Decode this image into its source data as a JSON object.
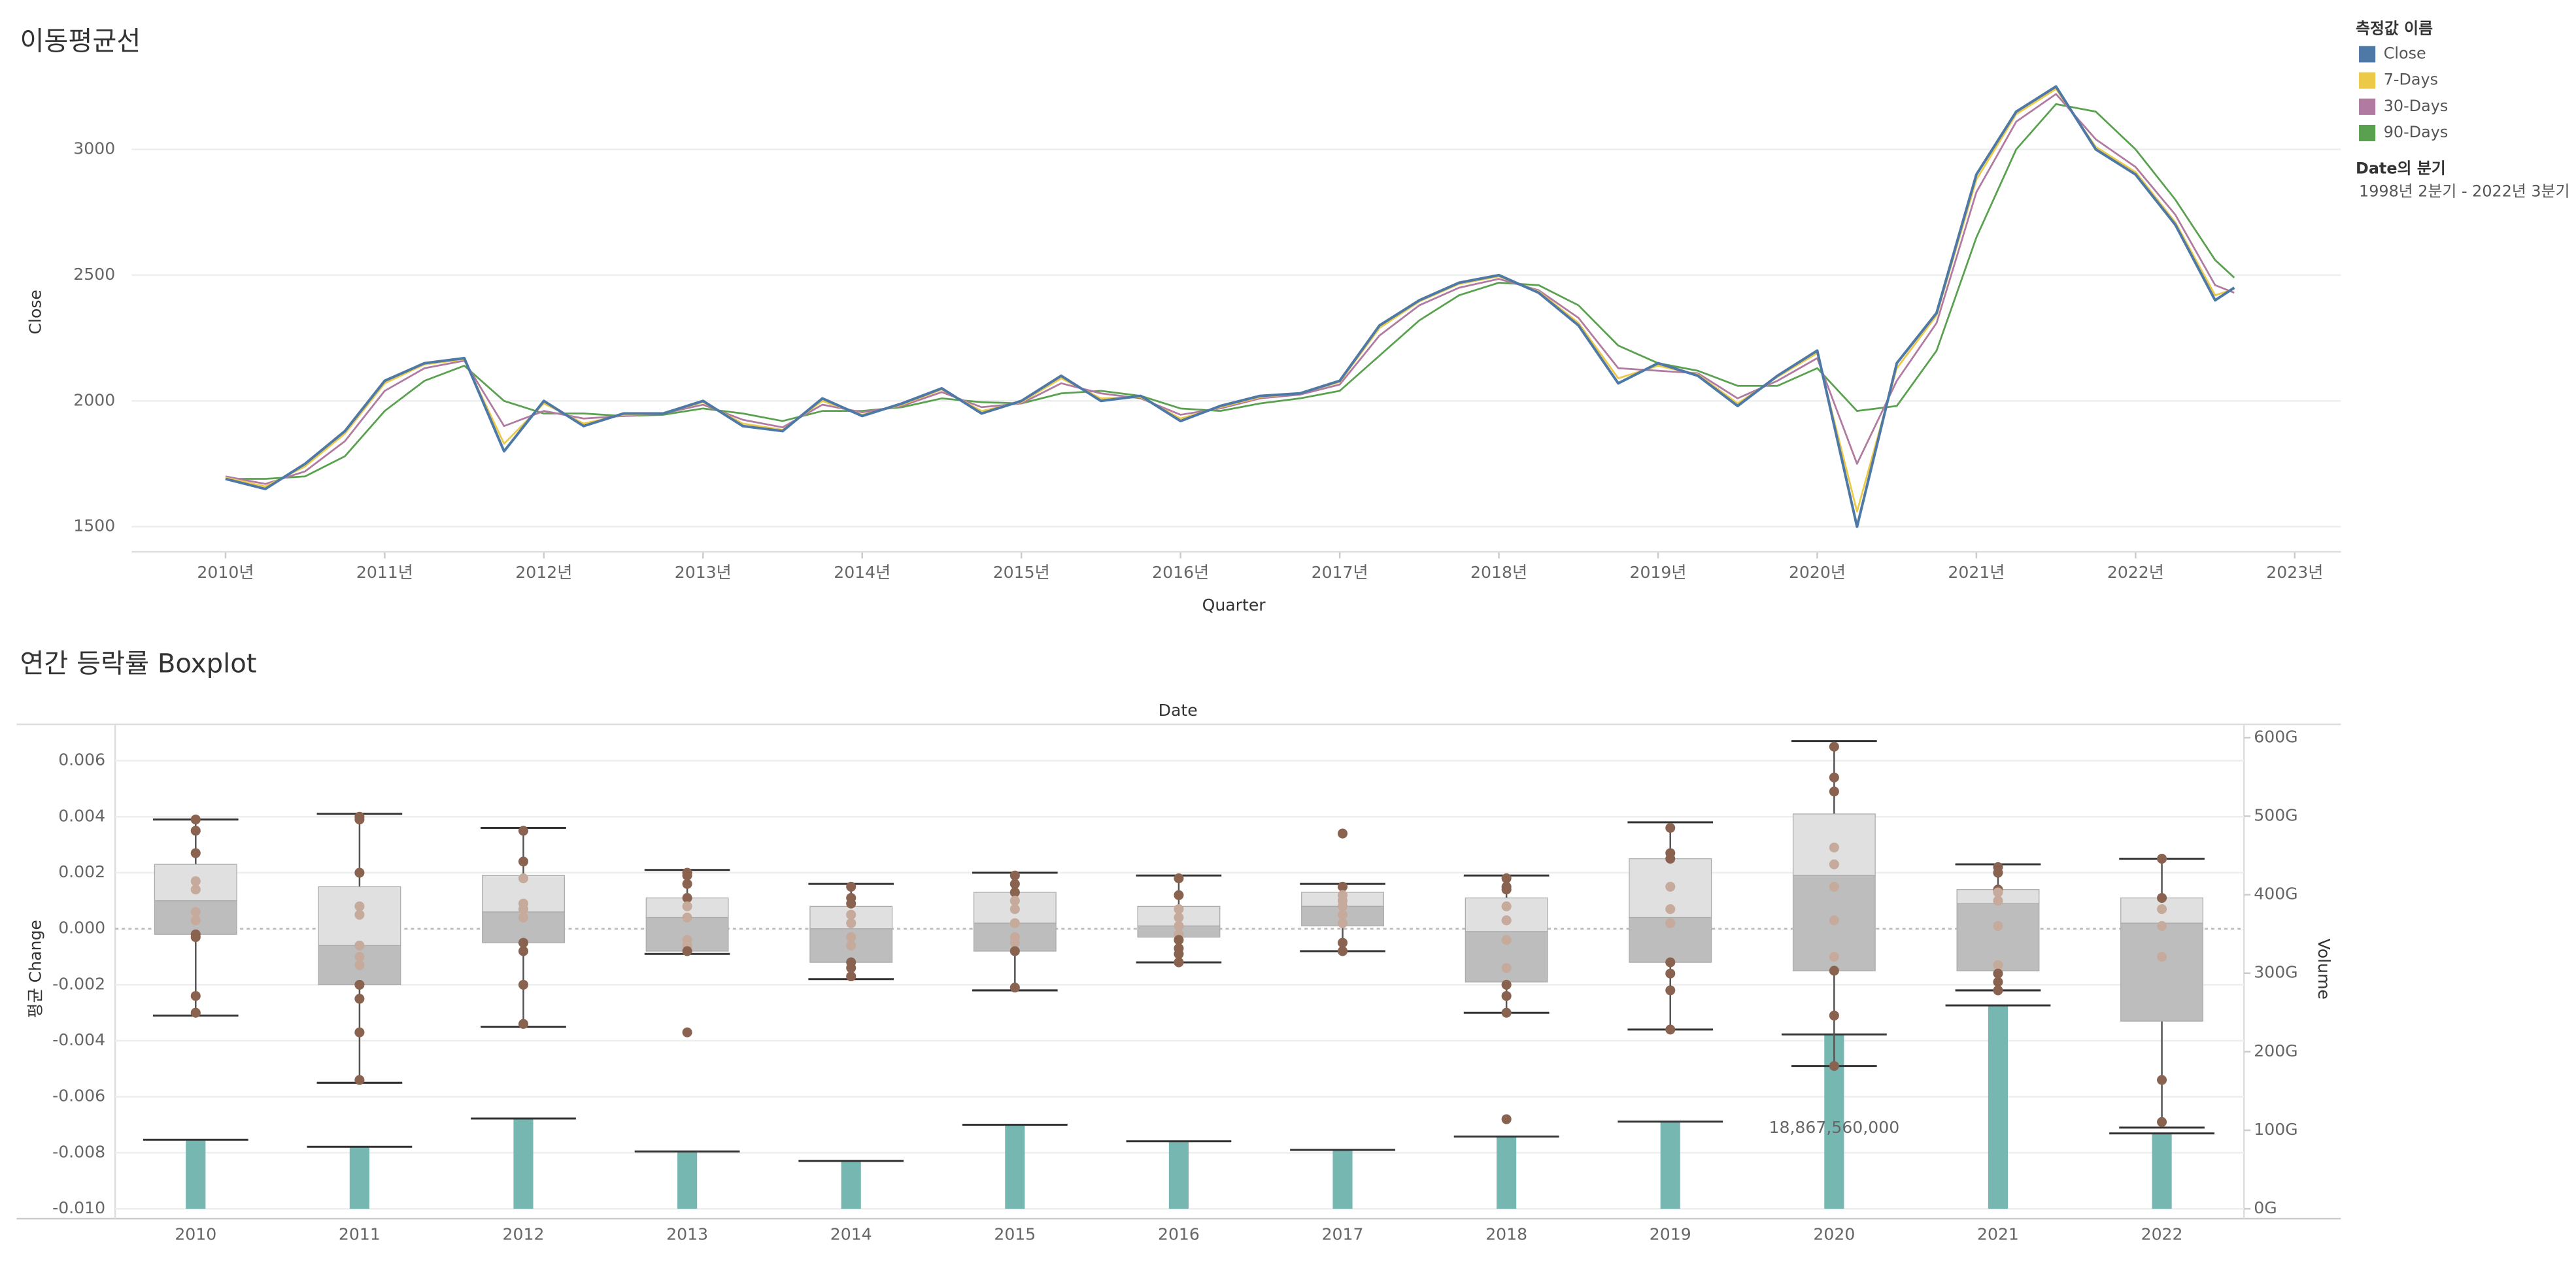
{
  "chart_data": [
    {
      "type": "line",
      "title": "이동평균선",
      "xlabel": "Quarter",
      "ylabel": "Close",
      "legend_title": "측정값 이름",
      "filter_title": "Date의 분기",
      "filter_value": "1998년 2분기 - 2022년 3분기",
      "x": [
        2010,
        2010.25,
        2010.5,
        2010.75,
        2011,
        2011.25,
        2011.5,
        2011.75,
        2012,
        2012.25,
        2012.5,
        2012.75,
        2013,
        2013.25,
        2013.5,
        2013.75,
        2014,
        2014.25,
        2014.5,
        2014.75,
        2015,
        2015.25,
        2015.5,
        2015.75,
        2016,
        2016.25,
        2016.5,
        2016.75,
        2017,
        2017.25,
        2017.5,
        2017.75,
        2018,
        2018.25,
        2018.5,
        2018.75,
        2019,
        2019.25,
        2019.5,
        2019.75,
        2020,
        2020.25,
        2020.5,
        2020.75,
        2021,
        2021.25,
        2021.5,
        2021.75,
        2022,
        2022.25,
        2022.5,
        2022.62
      ],
      "series": [
        {
          "name": "Close",
          "color": "#4e79a7",
          "values": [
            1690,
            1650,
            1750,
            1880,
            2080,
            2150,
            2170,
            1800,
            2000,
            1900,
            1950,
            1950,
            2000,
            1900,
            1880,
            2010,
            1940,
            1990,
            2050,
            1950,
            2000,
            2100,
            2000,
            2020,
            1920,
            1980,
            2020,
            2030,
            2080,
            2300,
            2400,
            2470,
            2500,
            2430,
            2300,
            2070,
            2150,
            2100,
            1980,
            2100,
            2200,
            1500,
            2150,
            2350,
            2900,
            3150,
            3250,
            3000,
            2900,
            2700,
            2400,
            2450
          ]
        },
        {
          "name": "7-Days",
          "color": "#edc948",
          "values": [
            1695,
            1660,
            1740,
            1870,
            2070,
            2145,
            2165,
            1830,
            1990,
            1910,
            1945,
            1950,
            1995,
            1910,
            1885,
            2000,
            1945,
            1985,
            2045,
            1960,
            1995,
            2090,
            2010,
            2015,
            1930,
            1975,
            2015,
            2030,
            2075,
            2290,
            2395,
            2465,
            2495,
            2435,
            2310,
            2090,
            2140,
            2105,
            1990,
            2095,
            2190,
            1560,
            2130,
            2340,
            2880,
            3140,
            3240,
            3010,
            2910,
            2710,
            2420,
            2445
          ]
        },
        {
          "name": "30-Days",
          "color": "#b07aa1",
          "values": [
            1700,
            1670,
            1720,
            1840,
            2040,
            2130,
            2160,
            1900,
            1960,
            1930,
            1940,
            1950,
            1985,
            1925,
            1895,
            1985,
            1955,
            1980,
            2035,
            1975,
            1990,
            2070,
            2030,
            2010,
            1945,
            1970,
            2010,
            2025,
            2065,
            2260,
            2380,
            2450,
            2485,
            2440,
            2330,
            2130,
            2120,
            2110,
            2010,
            2080,
            2170,
            1750,
            2080,
            2310,
            2830,
            3110,
            3220,
            3040,
            2930,
            2740,
            2460,
            2430
          ]
        },
        {
          "name": "90-Days",
          "color": "#59a14f",
          "values": [
            1690,
            1690,
            1700,
            1780,
            1960,
            2080,
            2140,
            2000,
            1950,
            1950,
            1940,
            1945,
            1970,
            1950,
            1920,
            1960,
            1960,
            1975,
            2010,
            1995,
            1990,
            2030,
            2040,
            2020,
            1970,
            1960,
            1990,
            2010,
            2040,
            2180,
            2320,
            2420,
            2470,
            2460,
            2380,
            2220,
            2150,
            2120,
            2060,
            2060,
            2130,
            1960,
            1980,
            2200,
            2650,
            3000,
            3180,
            3150,
            3000,
            2800,
            2560,
            2490
          ]
        }
      ],
      "xlim": [
        2009.41,
        2023.29
      ],
      "xticks": [
        {
          "value": 2010,
          "label": "2010년"
        },
        {
          "value": 2011,
          "label": "2011년"
        },
        {
          "value": 2012,
          "label": "2012년"
        },
        {
          "value": 2013,
          "label": "2013년"
        },
        {
          "value": 2014,
          "label": "2014년"
        },
        {
          "value": 2015,
          "label": "2015년"
        },
        {
          "value": 2016,
          "label": "2016년"
        },
        {
          "value": 2017,
          "label": "2017년"
        },
        {
          "value": 2018,
          "label": "2018년"
        },
        {
          "value": 2019,
          "label": "2019년"
        },
        {
          "value": 2020,
          "label": "2020년"
        },
        {
          "value": 2021,
          "label": "2021년"
        },
        {
          "value": 2022,
          "label": "2022년"
        },
        {
          "value": 2023,
          "label": "2023년"
        }
      ],
      "ylim": [
        1400,
        3300
      ],
      "yticks": [
        1500,
        2000,
        2500,
        3000
      ],
      "grid": true
    },
    {
      "type": "boxplot",
      "title": "연간 등락률 Boxplot",
      "header": "Date",
      "ylabel": "평균 Change",
      "y2label": "Volume",
      "annotation": "18,867,560,000",
      "categories": [
        "2010",
        "2011",
        "2012",
        "2013",
        "2014",
        "2015",
        "2016",
        "2017",
        "2018",
        "2019",
        "2020",
        "2021",
        "2022"
      ],
      "box_color_upper": "#e0e0e0",
      "box_color_lower": "#bdbdbd",
      "point_color": "#8a6350",
      "point_color_inner": "#c6aa9c",
      "boxes": [
        {
          "low": -0.0031,
          "q1": -0.0002,
          "median": 0.001,
          "q3": 0.0023,
          "high": 0.0039,
          "points": [
            0.0039,
            0.0035,
            0.0027,
            0.0017,
            0.0014,
            0.0006,
            0.0003,
            -0.0002,
            -0.0003,
            -0.0024,
            -0.003
          ]
        },
        {
          "low": -0.0055,
          "q1": -0.002,
          "median": -0.0006,
          "q3": 0.0015,
          "high": 0.0041,
          "points": [
            0.004,
            0.0039,
            0.002,
            0.0008,
            0.0005,
            -0.0006,
            -0.001,
            -0.0013,
            -0.002,
            -0.0025,
            -0.0037,
            -0.0054
          ]
        },
        {
          "low": -0.0035,
          "q1": -0.0005,
          "median": 0.0006,
          "q3": 0.0019,
          "high": 0.0036,
          "points": [
            0.0035,
            0.0024,
            0.0018,
            0.0009,
            0.0007,
            0.0004,
            -0.0005,
            -0.0008,
            -0.002,
            -0.0034
          ]
        },
        {
          "low": -0.0009,
          "q1": -0.0008,
          "median": 0.0004,
          "q3": 0.0011,
          "high": 0.0021,
          "points": [
            0.002,
            0.0019,
            0.0016,
            0.0011,
            0.0008,
            0.0004,
            -0.0004,
            -0.0006,
            -0.0008,
            -0.0037
          ]
        },
        {
          "low": -0.0018,
          "q1": -0.0012,
          "median": 0.0,
          "q3": 0.0008,
          "high": 0.0016,
          "points": [
            0.0015,
            0.0011,
            0.0009,
            0.0005,
            0.0002,
            -0.0003,
            -0.0006,
            -0.0012,
            -0.0014,
            -0.0017
          ]
        },
        {
          "low": -0.0022,
          "q1": -0.0008,
          "median": 0.0002,
          "q3": 0.0013,
          "high": 0.002,
          "points": [
            0.0019,
            0.0016,
            0.0013,
            0.001,
            0.0007,
            0.0002,
            -0.0003,
            -0.0005,
            -0.0008,
            -0.0021
          ]
        },
        {
          "low": -0.0012,
          "q1": -0.0003,
          "median": 0.0001,
          "q3": 0.0008,
          "high": 0.0019,
          "points": [
            0.0018,
            0.0012,
            0.0007,
            0.0004,
            0.0001,
            -0.0002,
            -0.0004,
            -0.0007,
            -0.0009,
            -0.0012
          ]
        },
        {
          "low": -0.0008,
          "q1": 0.0001,
          "median": 0.0008,
          "q3": 0.0013,
          "high": 0.0016,
          "points": [
            0.0034,
            0.0015,
            0.0012,
            0.001,
            0.0008,
            0.0005,
            0.0002,
            -0.0005,
            -0.0008
          ]
        },
        {
          "low": -0.003,
          "q1": -0.0019,
          "median": -0.0001,
          "q3": 0.0011,
          "high": 0.0019,
          "points": [
            0.0018,
            0.0015,
            0.0014,
            0.0008,
            0.0003,
            -0.0004,
            -0.0014,
            -0.002,
            -0.0024,
            -0.003,
            -0.0068
          ]
        },
        {
          "low": -0.0036,
          "q1": -0.0012,
          "median": 0.0004,
          "q3": 0.0025,
          "high": 0.0038,
          "points": [
            0.0036,
            0.0027,
            0.0025,
            0.0015,
            0.0007,
            0.0002,
            -0.0012,
            -0.0016,
            -0.0022,
            -0.0036
          ]
        },
        {
          "low": -0.0049,
          "q1": -0.0015,
          "median": 0.0019,
          "q3": 0.0041,
          "high": 0.0067,
          "points": [
            0.0065,
            0.0054,
            0.0049,
            0.0029,
            0.0023,
            0.0015,
            0.0003,
            -0.001,
            -0.0015,
            -0.0031,
            -0.0049
          ]
        },
        {
          "low": -0.0022,
          "q1": -0.0015,
          "median": 0.0009,
          "q3": 0.0014,
          "high": 0.0023,
          "points": [
            0.0022,
            0.002,
            0.0014,
            0.0013,
            0.001,
            0.0001,
            -0.0013,
            -0.0016,
            -0.0019,
            -0.0022
          ]
        },
        {
          "low": -0.0071,
          "q1": -0.0033,
          "median": 0.0002,
          "q3": 0.0011,
          "high": 0.0025,
          "points": [
            0.0025,
            0.0011,
            0.0007,
            0.0001,
            -0.001,
            -0.0054,
            -0.0069
          ]
        }
      ],
      "bars": {
        "axis": "y2",
        "color": "#76b7b2",
        "values": [
          88000000000,
          79000000000,
          115000000000,
          73000000000,
          61000000000,
          107000000000,
          86000000000,
          75000000000,
          92000000000,
          111000000000,
          222000000000,
          259000000000,
          96000000000
        ]
      },
      "ylim": [
        -0.01,
        0.0073
      ],
      "yticks": [
        {
          "value": -0.01,
          "label": "-0.010"
        },
        -0.008,
        -0.006,
        -0.004,
        -0.002,
        {
          "value": 0,
          "label": "0.000"
        },
        0.002,
        0.004,
        0.006
      ],
      "y2lim": [
        0,
        617000000000
      ],
      "y2ticks": [
        {
          "value": 0,
          "label": "0G"
        },
        {
          "value": 100000000000,
          "label": "100G"
        },
        {
          "value": 200000000000,
          "label": "200G"
        },
        {
          "value": 300000000000,
          "label": "300G"
        },
        {
          "value": 400000000000,
          "label": "400G"
        },
        {
          "value": 500000000000,
          "label": "500G"
        },
        {
          "value": 600000000000,
          "label": "600G"
        }
      ],
      "grid": true
    }
  ]
}
